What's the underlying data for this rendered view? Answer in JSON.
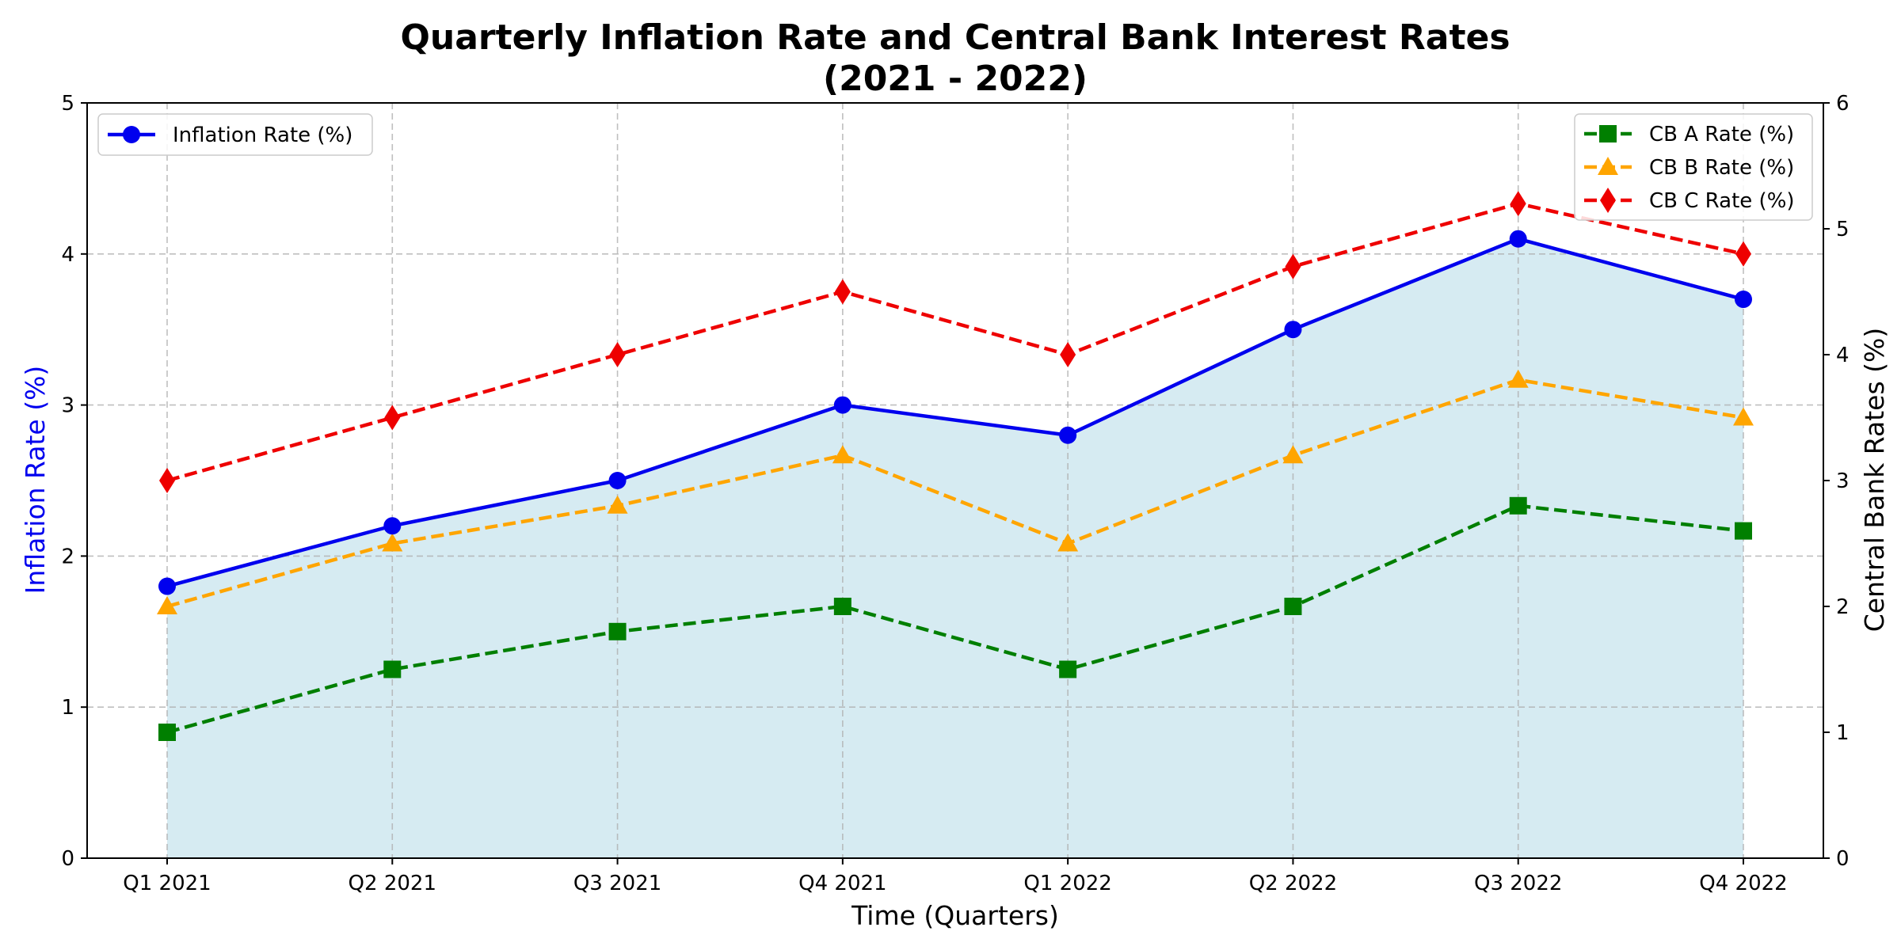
{
  "chart_data": {
    "type": "line",
    "title_line1": "Quarterly Inflation Rate and Central Bank Interest Rates",
    "title_line2": "(2021 - 2022)",
    "xlabel": "Time (Quarters)",
    "ylabel_left": "Inflation Rate (%)",
    "ylabel_right": "Central Bank Rates (%)",
    "categories": [
      "Q1 2021",
      "Q2 2021",
      "Q3 2021",
      "Q4 2021",
      "Q1 2022",
      "Q2 2022",
      "Q3 2022",
      "Q4 2022"
    ],
    "ylim_left": [
      0,
      5
    ],
    "yticks_left": [
      "0",
      "1",
      "2",
      "3",
      "4",
      "5"
    ],
    "ylim_right": [
      0,
      6
    ],
    "yticks_right": [
      "0",
      "1",
      "2",
      "3",
      "4",
      "5",
      "6"
    ],
    "grid": true,
    "fill_under": "Inflation Rate (%)",
    "series": [
      {
        "name": "Inflation Rate (%)",
        "axis": "left",
        "color": "#0000ee",
        "linestyle": "solid",
        "marker": "circle",
        "values": [
          1.8,
          2.2,
          2.5,
          3.0,
          2.8,
          3.5,
          4.1,
          3.7
        ]
      },
      {
        "name": "CB A Rate (%)",
        "axis": "right",
        "color": "#007f00",
        "linestyle": "dashed",
        "marker": "square",
        "values": [
          1.0,
          1.5,
          1.8,
          2.0,
          1.5,
          2.0,
          2.8,
          2.6
        ]
      },
      {
        "name": "CB B Rate (%)",
        "axis": "right",
        "color": "#ffa500",
        "linestyle": "dashed",
        "marker": "triangle",
        "values": [
          2.0,
          2.5,
          2.8,
          3.2,
          2.5,
          3.2,
          3.8,
          3.5
        ]
      },
      {
        "name": "CB C Rate (%)",
        "axis": "right",
        "color": "#ee0000",
        "linestyle": "dashed",
        "marker": "diamond",
        "values": [
          3.0,
          3.5,
          4.0,
          4.5,
          4.0,
          4.7,
          5.2,
          4.8
        ]
      }
    ],
    "fill_color": "#add8e6",
    "legend_left": [
      "Inflation Rate (%)"
    ],
    "legend_right": [
      "CB A Rate (%)",
      "CB B Rate (%)",
      "CB C Rate (%)"
    ],
    "legend_left_position": "top-left",
    "legend_right_position": "top-right"
  }
}
